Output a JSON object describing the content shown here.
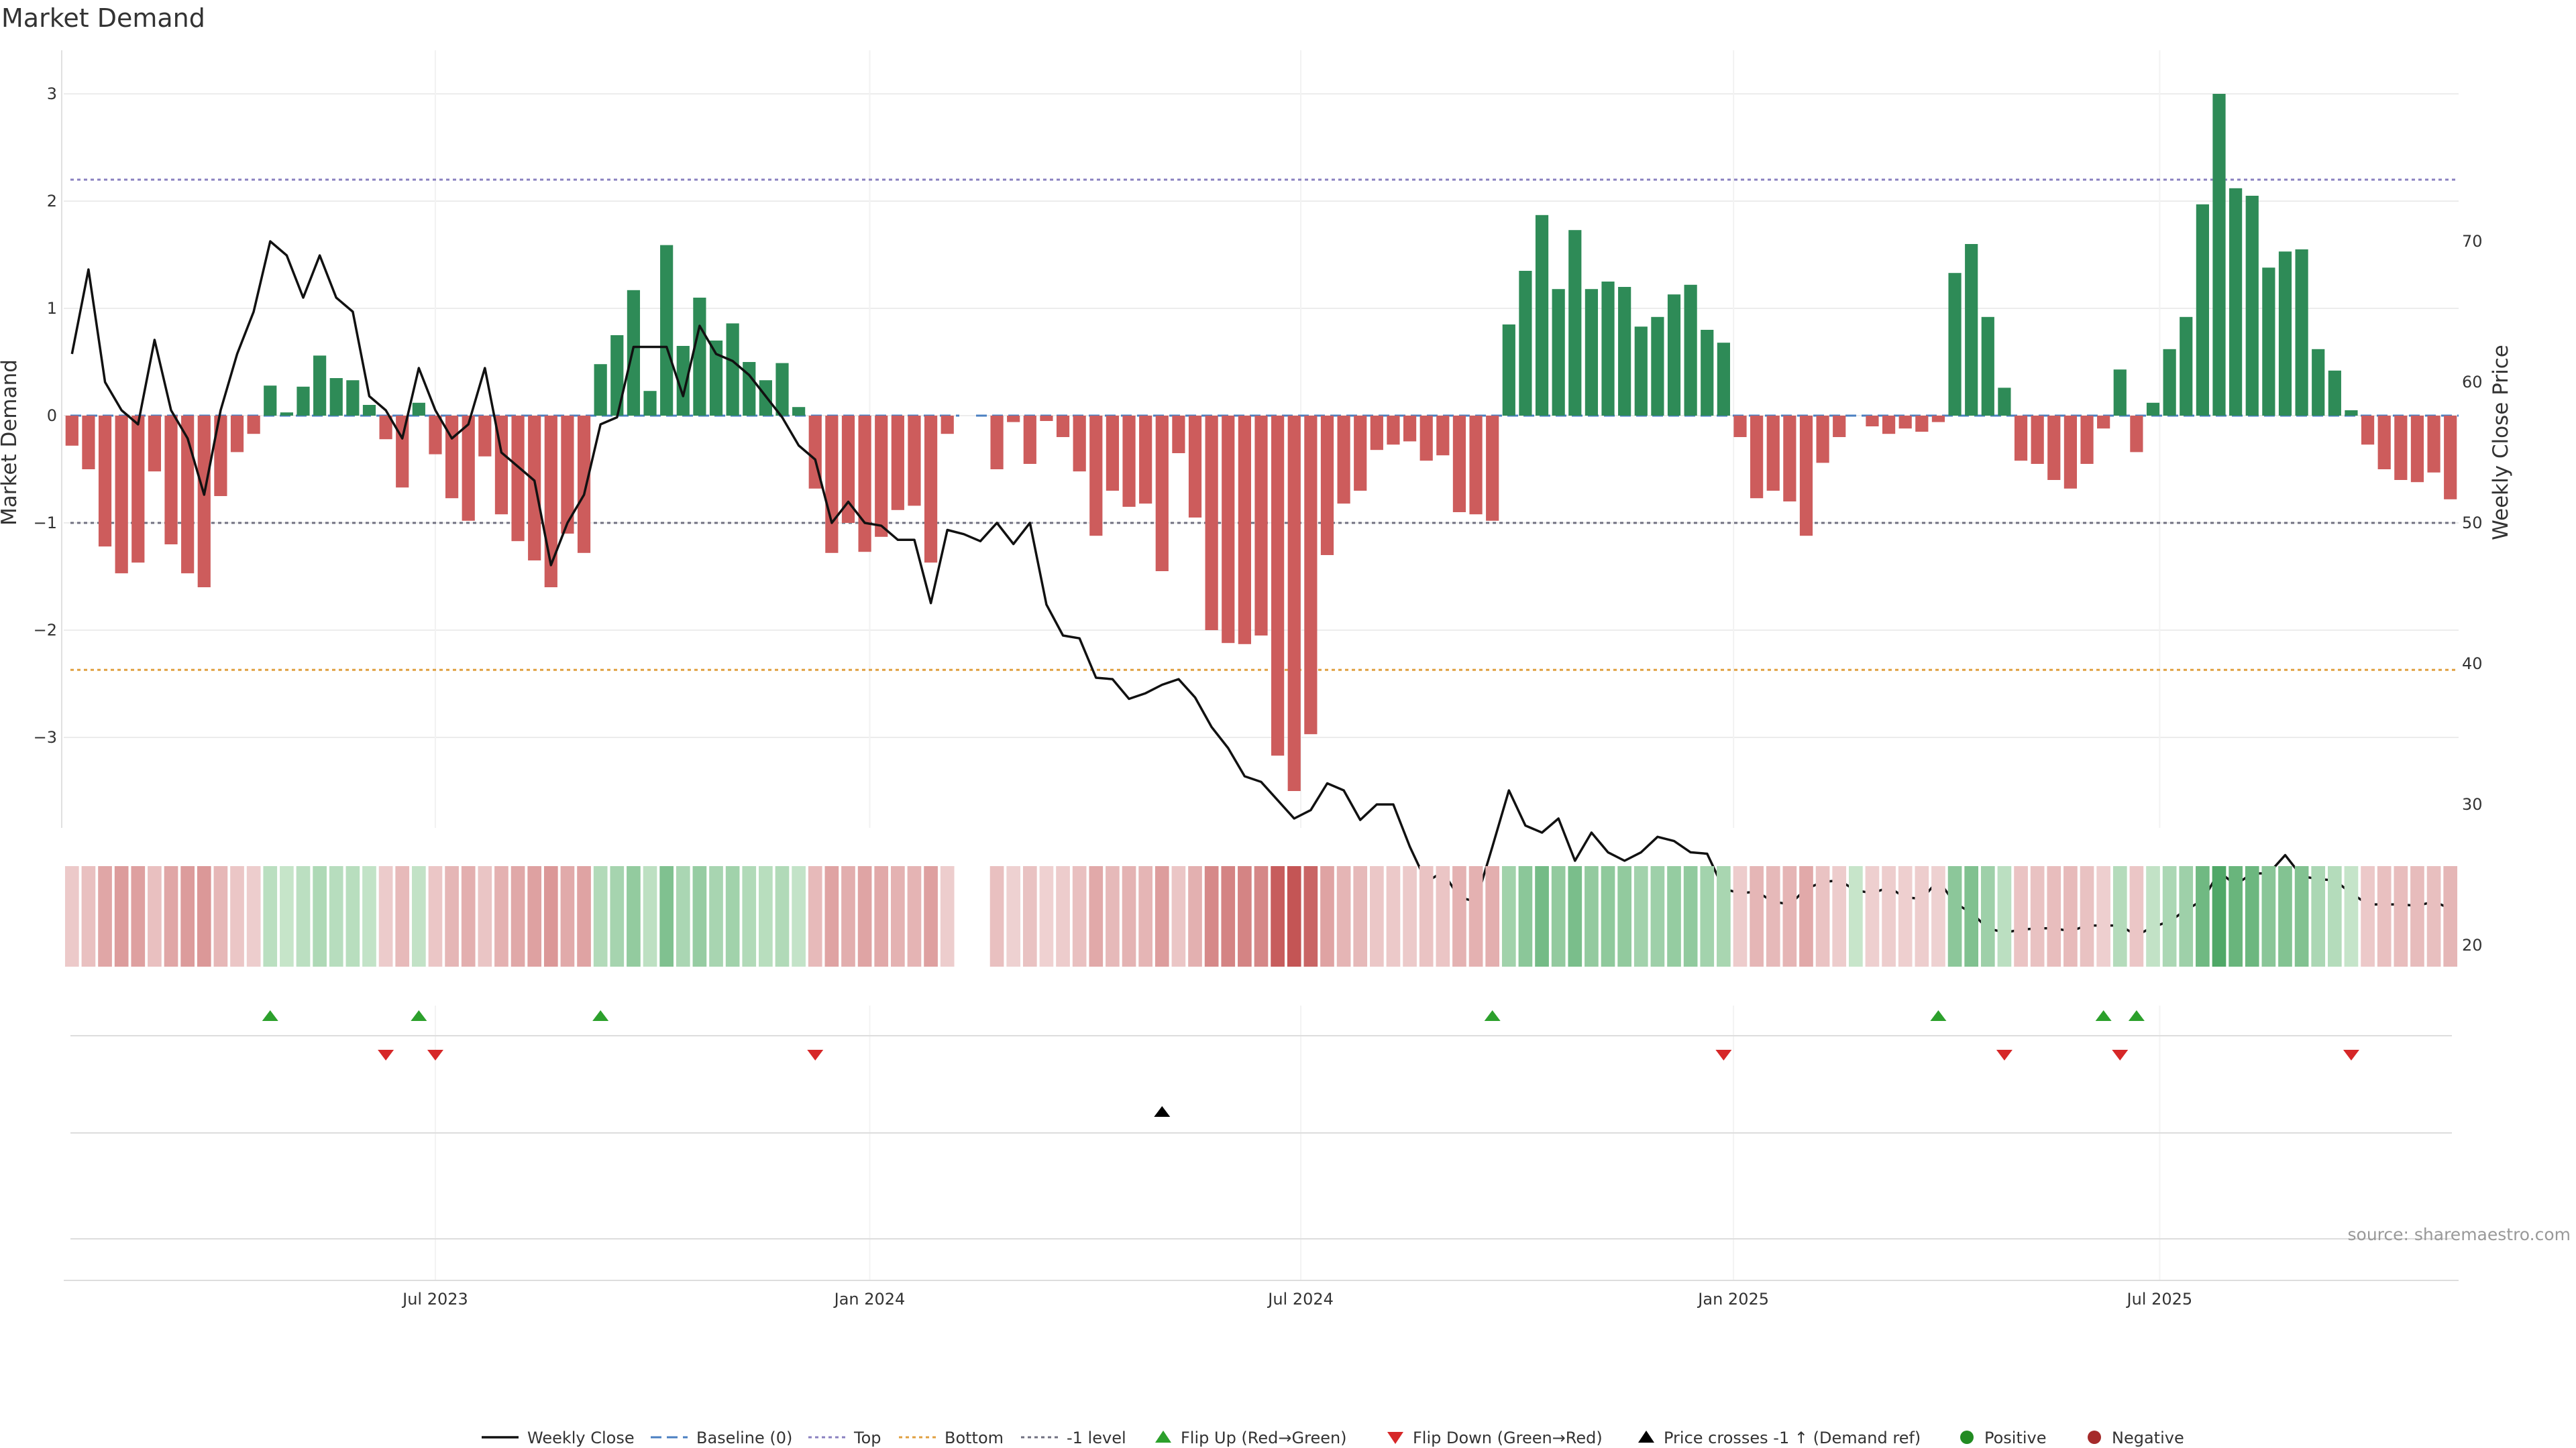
{
  "chart_data": {
    "type": "bar",
    "title": "Market Demand",
    "ylabel": "Market Demand",
    "y2label": "Weekly Close Price",
    "ylim": [
      -3.9,
      3.1
    ],
    "y2lim": [
      18,
      73
    ],
    "yticks": [
      3,
      2,
      1,
      0,
      -1,
      -2,
      -3
    ],
    "ytick_labels": [
      "3",
      "2",
      "1",
      "0",
      "−1",
      "−2",
      "−3"
    ],
    "y2ticks": [
      70,
      60,
      50,
      40,
      30,
      20
    ],
    "y2tick_labels": [
      "70",
      "60",
      "50",
      "40",
      "30",
      "20"
    ],
    "xtick_labels": [
      "Jul 2023",
      "Jan 2024",
      "Jul 2024",
      "Jan 2025",
      "Jul 2025"
    ],
    "xtick_weeks": [
      22,
      48.3,
      74.4,
      100.6,
      126.4
    ],
    "reference_lines": {
      "top": 2.2,
      "bottom": -2.37,
      "minus_one": -1.0,
      "baseline": 0
    },
    "demand": [
      -0.28,
      -0.5,
      -1.22,
      -1.47,
      -1.37,
      -0.52,
      -1.2,
      -1.47,
      -1.6,
      -0.75,
      -0.34,
      -0.17,
      0.28,
      0.03,
      0.27,
      0.56,
      0.35,
      0.33,
      0.1,
      -0.22,
      -0.67,
      0.12,
      -0.36,
      -0.77,
      -0.98,
      -0.38,
      -0.92,
      -1.17,
      -1.35,
      -1.6,
      -1.1,
      -1.28,
      0.48,
      0.75,
      1.17,
      0.23,
      1.59,
      0.65,
      1.1,
      0.7,
      0.86,
      0.5,
      0.33,
      0.49,
      0.08,
      -0.68,
      -1.28,
      -1.0,
      -1.27,
      -1.13,
      -0.88,
      -0.84,
      -1.37,
      -0.17,
      null,
      null,
      -0.5,
      -0.06,
      -0.45,
      -0.05,
      -0.2,
      -0.52,
      -1.12,
      -0.7,
      -0.85,
      -0.82,
      -1.45,
      -0.35,
      -0.95,
      -2.0,
      -2.12,
      -2.13,
      -2.05,
      -3.17,
      -3.5,
      -2.97,
      -1.3,
      -0.82,
      -0.7,
      -0.32,
      -0.27,
      -0.24,
      -0.42,
      -0.37,
      -0.9,
      -0.92,
      -0.98,
      0.85,
      1.35,
      1.87,
      1.18,
      1.73,
      1.18,
      1.25,
      1.2,
      0.83,
      0.92,
      1.13,
      1.22,
      0.8,
      0.68,
      -0.2,
      -0.77,
      -0.7,
      -0.8,
      -1.12,
      -0.44,
      -0.2,
      0.0,
      -0.1,
      -0.17,
      -0.12,
      -0.15,
      -0.06,
      1.33,
      1.6,
      0.92,
      0.26,
      -0.42,
      -0.45,
      -0.6,
      -0.68,
      -0.45,
      -0.12,
      0.43,
      -0.34,
      0.12,
      0.62,
      0.92,
      1.97,
      3.0,
      2.12,
      2.05,
      1.38,
      1.53,
      1.55,
      0.62,
      0.42,
      0.05,
      -0.27,
      -0.5,
      -0.6,
      -0.62,
      -0.53,
      -0.78
    ],
    "weekly_close": [
      62,
      68,
      60,
      58,
      57,
      63,
      58,
      56,
      52,
      58,
      62,
      65,
      70,
      69,
      66,
      69,
      66,
      65,
      59,
      58,
      56,
      61,
      58,
      56,
      57,
      61,
      55,
      54,
      53,
      47,
      50,
      52,
      57,
      57.5,
      62.5,
      62.5,
      62.5,
      59,
      64,
      62,
      61.5,
      60.5,
      59,
      57.5,
      55.5,
      54.5,
      50,
      51.5,
      50,
      49.8,
      48.8,
      48.8,
      44.3,
      49.5,
      49.2,
      48.7,
      50,
      48.5,
      50,
      44.2,
      42,
      41.8,
      39,
      38.9,
      37.5,
      37.9,
      38.5,
      38.9,
      37.6,
      35.5,
      34,
      32,
      31.6,
      30.3,
      29,
      29.6,
      31.5,
      31,
      28.9,
      30,
      30,
      27,
      24.5,
      25.2,
      23.4,
      23.1,
      27,
      31,
      28.5,
      28,
      29,
      26,
      28,
      26.6,
      26,
      26.6,
      27.7,
      27.4,
      26.6,
      26.5,
      24,
      23.7,
      23.8,
      23.1,
      22.9,
      24,
      24.5,
      24.6,
      23.9,
      23.7,
      24.1,
      23.4,
      23.3,
      24.6,
      23,
      22.3,
      21.2,
      20.9,
      21.1,
      21.2,
      21.2,
      21,
      21.4,
      21.4,
      21.4,
      20.7,
      21.3,
      21.7,
      22.5,
      23.2,
      25.2,
      24.3,
      25.1,
      25.1,
      26.4,
      24.9,
      24.7,
      24.6,
      23.7,
      22.9,
      22.9,
      22.9,
      22.8,
      23.1,
      22.6
    ],
    "strip_gap_weeks": [
      54,
      55
    ],
    "flip_up_weeks": [
      12,
      21,
      32,
      86,
      113,
      123,
      125
    ],
    "flip_down_weeks": [
      19,
      22,
      45,
      100,
      117,
      124,
      138
    ],
    "price_cross_weeks": [
      66
    ],
    "legend": [
      "Weekly Close",
      "Baseline (0)",
      "Top",
      "Bottom",
      "-1 level",
      "Flip Up (Red→Green)",
      "Flip Down (Green→Red)",
      "Price crosses -1 ↑ (Demand ref)",
      "Positive",
      "Negative"
    ],
    "legend_placement": "bottom-center",
    "source": "source: sharemaestro.com",
    "grid": true
  },
  "colors": {
    "positive": "#2e8b57",
    "negative": "#cd5c5c",
    "close": "#111111",
    "baseline": "#4a7fc1",
    "top": "#8a80c0",
    "bottom": "#e0a040",
    "minus_one": "#707080",
    "flip_up": "#2ca02c",
    "flip_down": "#d62728",
    "cross": "#000000",
    "positive_dot": "#228b22",
    "negative_dot": "#a52a2a"
  }
}
